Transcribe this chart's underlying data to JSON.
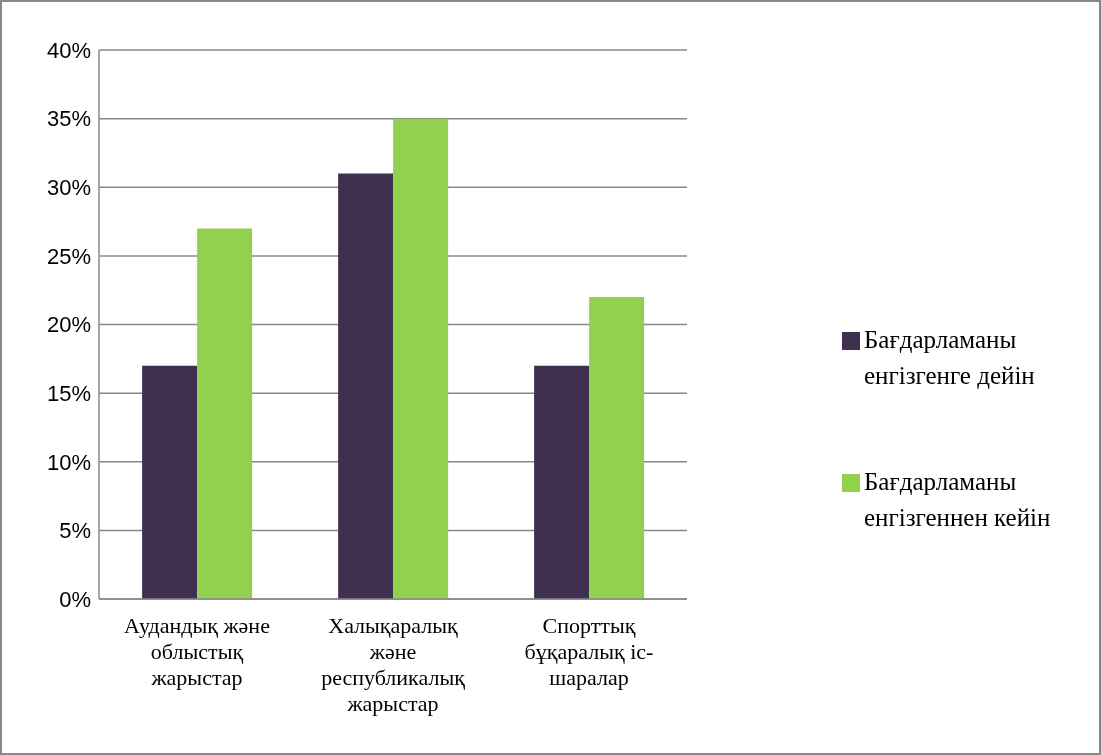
{
  "chart_data": {
    "type": "bar",
    "categories": [
      "Аудандық және облыстық жарыстар",
      "Халықаралық және республикалық жарыстар",
      "Спорттық бұқаралық іс-шаралар"
    ],
    "series": [
      {
        "name": "Бағдарламаны енгізгенге дейін",
        "color": "#3f3050",
        "values": [
          17,
          31,
          17
        ]
      },
      {
        "name": "Бағдарламаны енгізгеннен кейін",
        "color": "#92d050",
        "values": [
          27,
          35,
          22
        ]
      }
    ],
    "ylim": [
      0,
      40
    ],
    "yticks": [
      {
        "value": 0,
        "label": "0%"
      },
      {
        "value": 5,
        "label": "5%"
      },
      {
        "value": 10,
        "label": "10%"
      },
      {
        "value": 15,
        "label": "15%"
      },
      {
        "value": 20,
        "label": "20%"
      },
      {
        "value": 25,
        "label": "25%"
      },
      {
        "value": 30,
        "label": "30%"
      },
      {
        "value": 35,
        "label": "35%"
      },
      {
        "value": 40,
        "label": "40%"
      }
    ],
    "grid": "y",
    "legend": "right"
  }
}
